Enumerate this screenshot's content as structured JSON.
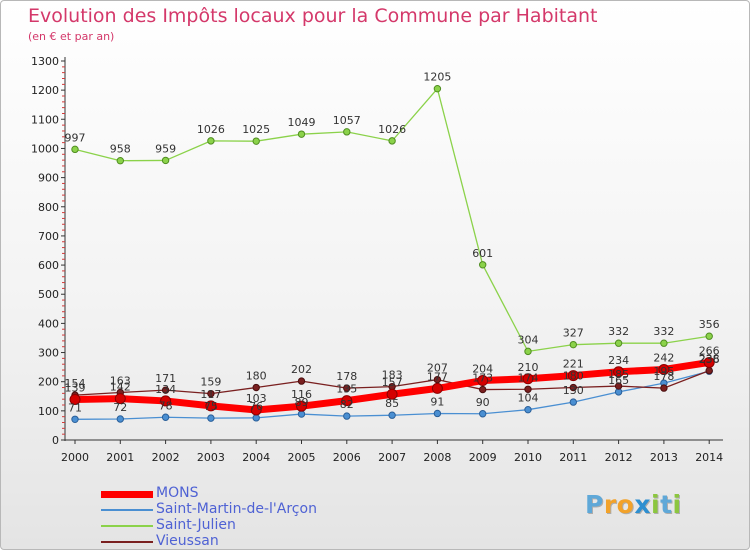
{
  "header": {
    "title": "Evolution des Impôts locaux pour la Commune par Habitant",
    "subtitle": "(en € et par an)"
  },
  "brand": {
    "name": "Proxiti",
    "letters": [
      "P",
      "r",
      "o",
      "x",
      "i",
      "t",
      "i"
    ],
    "letter_colors": [
      "#5fa8d8",
      "#f2a22a",
      "#f2a22a",
      "#2e8fd0",
      "#8cc63f",
      "#5fa8d8",
      "#8cc63f"
    ]
  },
  "chart_data": {
    "type": "line",
    "title": "Evolution des Impôts locaux pour la Commune par Habitant",
    "subtitle": "(en € et par an)",
    "xlabel": "",
    "ylabel": "",
    "categories": [
      "2000",
      "2001",
      "2002",
      "2003",
      "2004",
      "2005",
      "2006",
      "2007",
      "2008",
      "2009",
      "2010",
      "2011",
      "2012",
      "2013",
      "2014"
    ],
    "ylim": [
      0,
      1300
    ],
    "yticks": [
      0,
      100,
      200,
      300,
      400,
      500,
      600,
      700,
      800,
      900,
      1000,
      1100,
      1200,
      1300
    ],
    "grid": false,
    "legend_position": "bottom-left",
    "series": [
      {
        "name": "MONS",
        "color": "#ff0000",
        "values": [
          139,
          142,
          134,
          117,
          103,
          116,
          135,
          157,
          177,
          204,
          210,
          221,
          234,
          242,
          266
        ],
        "value_labels": [
          "139",
          "142",
          "134",
          "117",
          "103",
          "116",
          "135",
          "157",
          "177",
          "204",
          "210",
          "221",
          "234",
          "242",
          "266"
        ]
      },
      {
        "name": "Saint-Martin-de-l'Arçon",
        "color": "#4a8fd2",
        "values": [
          71,
          72,
          78,
          75,
          76,
          89,
          82,
          85,
          91,
          90,
          104,
          130,
          165,
          195,
          236
        ],
        "value_labels": [
          "71",
          "72",
          "78",
          "75",
          "76",
          "89",
          "82",
          "85",
          "91",
          "90",
          "104",
          "130",
          "165",
          "195",
          "236"
        ]
      },
      {
        "name": "Saint-Julien",
        "color": "#8bd24a",
        "values": [
          997,
          958,
          959,
          1026,
          1025,
          1049,
          1057,
          1026,
          1205,
          601,
          304,
          327,
          332,
          332,
          356
        ],
        "value_labels": [
          "997",
          "958",
          "959",
          "1026",
          "1025",
          "1049",
          "1057",
          "1026",
          "1205",
          "601",
          "304",
          "327",
          "332",
          "332",
          "356"
        ]
      },
      {
        "name": "Vieussan",
        "color": "#7a2020",
        "values": [
          154,
          163,
          171,
          159,
          180,
          202,
          178,
          183,
          207,
          173,
          174,
          180,
          185,
          178,
          238
        ],
        "value_labels": [
          "154",
          "163",
          "171",
          "159",
          "180",
          "202",
          "178",
          "183",
          "207",
          "173",
          "174",
          "180",
          "185",
          "178",
          "238"
        ]
      }
    ]
  }
}
